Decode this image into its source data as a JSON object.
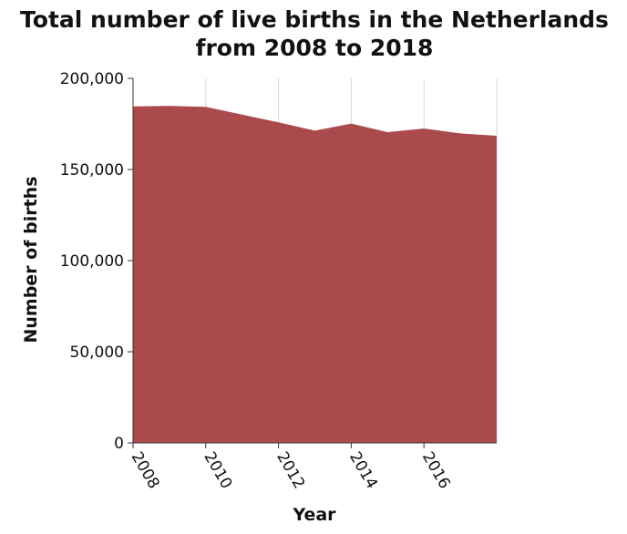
{
  "chart_data": {
    "type": "area",
    "title_lines": [
      "Total number of live births in the Netherlands",
      "from 2008 to 2018"
    ],
    "xlabel": "Year",
    "ylabel": "Number of births",
    "xlim": [
      2008,
      2018
    ],
    "ylim": [
      0,
      200000
    ],
    "x_ticks": [
      2008,
      2010,
      2012,
      2014,
      2016
    ],
    "y_ticks": [
      0,
      50000,
      100000,
      150000,
      200000
    ],
    "y_tick_labels": [
      "0",
      "50,000",
      "100,000",
      "150,000",
      "200,000"
    ],
    "grid": "vertical",
    "fill_color": "#ab4a4d",
    "series": [
      {
        "x": [
          2008,
          2009,
          2010,
          2011,
          2012,
          2013,
          2014,
          2015,
          2016,
          2017,
          2018
        ],
        "values": [
          184600,
          184900,
          184400,
          180100,
          175900,
          171300,
          175200,
          170500,
          172500,
          169800,
          168500
        ]
      }
    ]
  }
}
